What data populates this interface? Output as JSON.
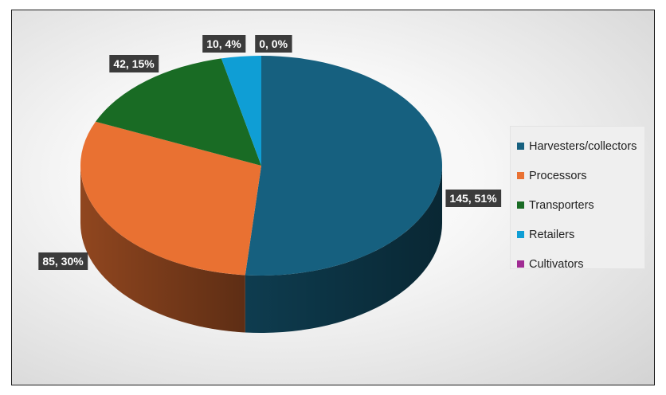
{
  "chart_data": {
    "type": "pie",
    "title": "",
    "categories": [
      "Harvesters/collectors",
      "Processors",
      "Transporters",
      "Retailers",
      "Cultivators"
    ],
    "values": [
      145,
      85,
      42,
      10,
      0
    ],
    "percentages": [
      51,
      30,
      15,
      4,
      0
    ],
    "data_labels": [
      "145, 51%",
      "85, 30%",
      "42, 15%",
      "10, 4%",
      "0, 0%"
    ],
    "colors": [
      "#16607f",
      "#e97132",
      "#196b24",
      "#0f9ed5",
      "#a02b93"
    ],
    "style": "3d",
    "legend_position": "right"
  }
}
